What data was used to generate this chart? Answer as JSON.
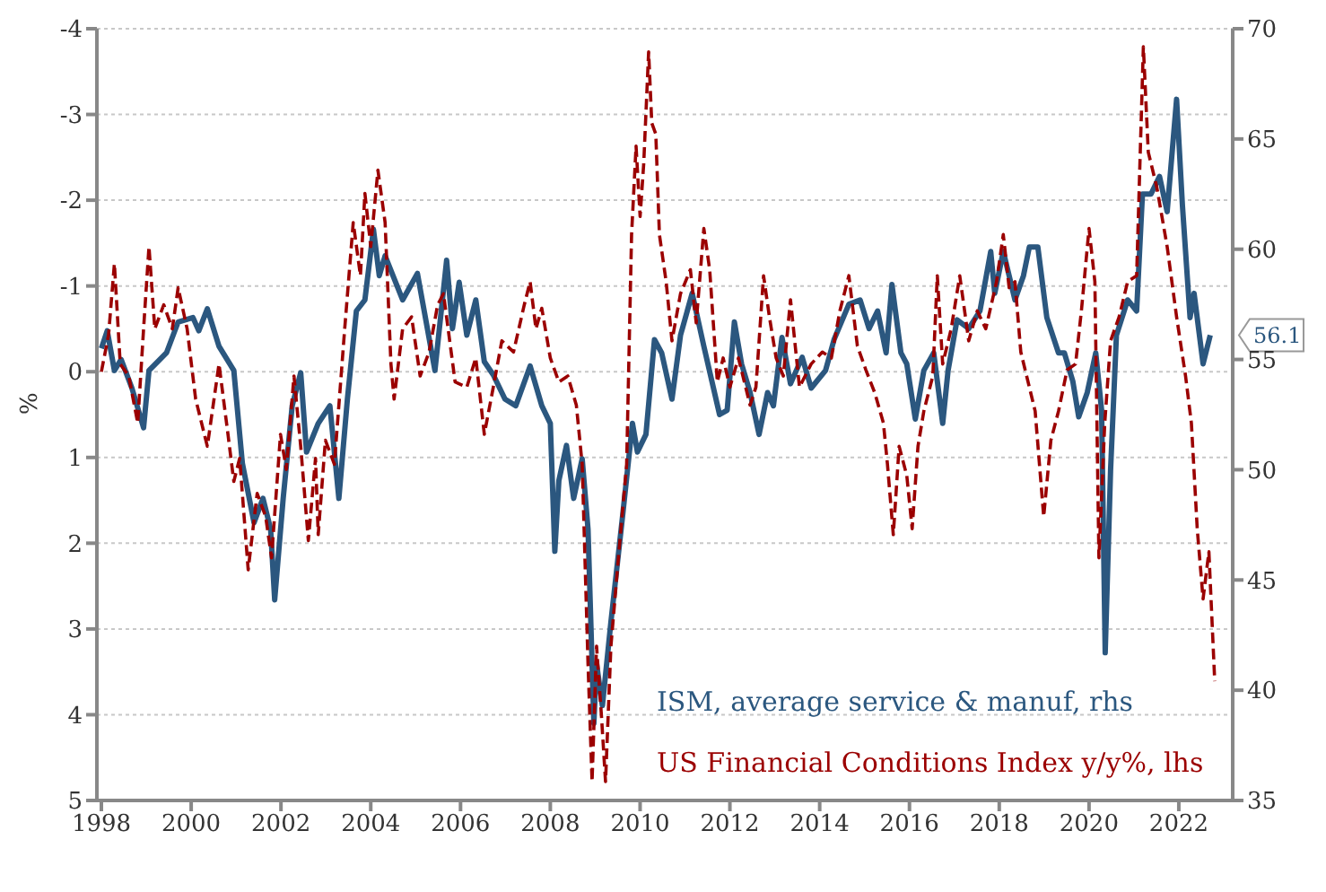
{
  "chart_data": {
    "type": "line",
    "ylabel": "%",
    "xlim": [
      1997.9,
      2023.2
    ],
    "xticks": [
      1998,
      2000,
      2002,
      2004,
      2006,
      2008,
      2010,
      2012,
      2014,
      2016,
      2018,
      2020,
      2022
    ],
    "ylim": [
      5,
      -4
    ],
    "yticks": [
      -4,
      -3,
      -2,
      -1,
      0,
      1,
      2,
      3,
      4,
      5
    ],
    "y2lim": [
      35,
      70
    ],
    "y2ticks": [
      35,
      40,
      45,
      50,
      55,
      60,
      65,
      70
    ],
    "grid": "y",
    "legend": "bottom",
    "marker": "none",
    "annotations": [
      "56.1"
    ],
    "series": [
      {
        "name": "ISM, average service & manuf, rhs",
        "color": "#2b577f",
        "axis": "y2",
        "line_style": "solid",
        "x": [
          1998.0,
          1998.13,
          1998.29,
          1998.44,
          1998.68,
          1998.94,
          1999.06,
          1999.45,
          1999.71,
          2000.04,
          2000.17,
          2000.36,
          2000.62,
          2000.95,
          2001.14,
          2001.4,
          2001.6,
          2001.77,
          2001.86,
          2002.05,
          2002.25,
          2002.44,
          2002.57,
          2002.83,
          2003.09,
          2003.29,
          2003.48,
          2003.68,
          2003.87,
          2004.06,
          2004.19,
          2004.32,
          2004.71,
          2005.04,
          2005.43,
          2005.69,
          2005.82,
          2005.97,
          2006.14,
          2006.34,
          2006.53,
          2006.73,
          2006.99,
          2007.23,
          2007.55,
          2007.81,
          2008.0,
          2008.1,
          2008.19,
          2008.36,
          2008.52,
          2008.71,
          2008.84,
          2008.97,
          2009.03,
          2009.16,
          2009.35,
          2009.61,
          2009.83,
          2009.94,
          2010.13,
          2010.32,
          2010.48,
          2010.71,
          2010.9,
          2011.16,
          2011.42,
          2011.77,
          2011.94,
          2012.1,
          2012.26,
          2012.45,
          2012.65,
          2012.84,
          2012.97,
          2013.16,
          2013.35,
          2013.61,
          2013.81,
          2014.13,
          2014.32,
          2014.65,
          2014.9,
          2015.1,
          2015.29,
          2015.48,
          2015.61,
          2015.81,
          2015.94,
          2016.13,
          2016.32,
          2016.54,
          2016.74,
          2016.86,
          2017.06,
          2017.32,
          2017.57,
          2017.81,
          2017.9,
          2018.09,
          2018.35,
          2018.54,
          2018.67,
          2018.86,
          2019.06,
          2019.32,
          2019.45,
          2019.64,
          2019.77,
          2019.96,
          2020.15,
          2020.28,
          2020.36,
          2020.48,
          2020.61,
          2020.86,
          2021.06,
          2021.19,
          2021.38,
          2021.57,
          2021.74,
          2021.95,
          2022.08,
          2022.25,
          2022.34,
          2022.54,
          2022.7
        ],
        "values": [
          55.5,
          56.3,
          54.5,
          55.0,
          53.7,
          51.9,
          54.5,
          55.3,
          56.7,
          56.9,
          56.3,
          57.3,
          55.6,
          54.5,
          50.3,
          47.6,
          48.7,
          47.3,
          44.1,
          48.7,
          52.9,
          54.4,
          50.8,
          52.1,
          52.9,
          48.7,
          53.2,
          57.2,
          57.7,
          60.9,
          58.8,
          59.7,
          57.7,
          58.9,
          54.5,
          59.5,
          56.4,
          58.5,
          56.1,
          57.7,
          54.9,
          54.3,
          53.2,
          52.9,
          54.7,
          52.9,
          52.1,
          46.3,
          49.5,
          51.1,
          48.7,
          50.5,
          47.3,
          38.5,
          41.2,
          39.3,
          43.1,
          47.9,
          52.1,
          50.8,
          51.6,
          55.9,
          55.3,
          53.2,
          56.1,
          58.0,
          55.6,
          52.5,
          52.7,
          56.7,
          54.8,
          53.5,
          51.6,
          53.5,
          52.9,
          56.0,
          53.9,
          55.1,
          53.7,
          54.5,
          55.9,
          57.5,
          57.7,
          56.4,
          57.2,
          55.3,
          58.4,
          55.3,
          54.8,
          52.3,
          54.5,
          55.3,
          52.1,
          54.5,
          56.8,
          56.4,
          57.2,
          59.9,
          58.0,
          59.9,
          57.7,
          58.8,
          60.1,
          60.1,
          56.9,
          55.3,
          55.3,
          54.0,
          52.4,
          53.5,
          55.3,
          52.7,
          41.7,
          50.0,
          56.1,
          57.7,
          57.2,
          62.5,
          62.5,
          63.3,
          61.7,
          66.8,
          62.0,
          56.9,
          58.0,
          54.8,
          56.1
        ]
      },
      {
        "name": "US Financial Conditions Index y/y%, lhs",
        "color": "#9b0000",
        "line_style": "dashed",
        "x": [
          1998.0,
          1998.16,
          1998.29,
          1998.42,
          1998.61,
          1998.81,
          1998.94,
          1999.06,
          1999.19,
          1999.39,
          1999.58,
          1999.71,
          1999.91,
          2000.1,
          2000.36,
          2000.62,
          2000.82,
          2000.95,
          2001.08,
          2001.27,
          2001.47,
          2001.66,
          2001.79,
          2001.99,
          2002.12,
          2002.29,
          2002.44,
          2002.61,
          2002.77,
          2002.83,
          2002.99,
          2003.19,
          2003.42,
          2003.61,
          2003.77,
          2003.87,
          2004.0,
          2004.16,
          2004.32,
          2004.45,
          2004.52,
          2004.71,
          2004.91,
          2005.1,
          2005.3,
          2005.49,
          2005.62,
          2005.88,
          2006.14,
          2006.34,
          2006.53,
          2006.73,
          2006.92,
          2007.18,
          2007.42,
          2007.55,
          2007.68,
          2007.81,
          2008.0,
          2008.19,
          2008.39,
          2008.58,
          2008.71,
          2008.84,
          2008.93,
          2009.03,
          2009.14,
          2009.23,
          2009.35,
          2009.55,
          2009.7,
          2009.81,
          2009.91,
          2010.0,
          2010.08,
          2010.19,
          2010.26,
          2010.35,
          2010.43,
          2010.58,
          2010.71,
          2010.9,
          2011.12,
          2011.25,
          2011.42,
          2011.55,
          2011.72,
          2011.85,
          2012.0,
          2012.19,
          2012.45,
          2012.58,
          2012.75,
          2012.88,
          2013.03,
          2013.19,
          2013.35,
          2013.55,
          2013.81,
          2014.06,
          2014.26,
          2014.45,
          2014.65,
          2014.84,
          2015.03,
          2015.23,
          2015.42,
          2015.51,
          2015.64,
          2015.77,
          2015.94,
          2016.06,
          2016.19,
          2016.32,
          2016.52,
          2016.62,
          2016.74,
          2016.93,
          2017.12,
          2017.32,
          2017.51,
          2017.7,
          2017.94,
          2018.09,
          2018.22,
          2018.35,
          2018.48,
          2018.61,
          2018.8,
          2018.99,
          2019.15,
          2019.32,
          2019.51,
          2019.7,
          2019.83,
          2020.0,
          2020.13,
          2020.22,
          2020.35,
          2020.48,
          2020.67,
          2020.86,
          2021.06,
          2021.21,
          2021.32,
          2021.51,
          2021.74,
          2021.95,
          2022.15,
          2022.28,
          2022.41,
          2022.54,
          2022.67,
          2022.8
        ],
        "values": [
          0.0,
          -0.43,
          -1.26,
          -0.09,
          0.05,
          0.6,
          -0.5,
          -1.46,
          -0.5,
          -0.78,
          -0.5,
          -0.98,
          -0.5,
          0.32,
          0.87,
          -0.09,
          0.73,
          1.28,
          1.01,
          2.31,
          1.42,
          1.69,
          2.17,
          0.73,
          1.14,
          0.05,
          0.87,
          1.97,
          1.01,
          1.9,
          0.8,
          1.08,
          -0.5,
          -1.74,
          -1.12,
          -2.08,
          -1.46,
          -2.35,
          -1.74,
          -0.09,
          0.32,
          -0.5,
          -0.64,
          0.05,
          -0.23,
          -0.78,
          -0.91,
          0.12,
          0.18,
          -0.16,
          0.73,
          0.18,
          -0.36,
          -0.23,
          -0.78,
          -1.05,
          -0.5,
          -0.74,
          -0.16,
          0.12,
          0.05,
          0.39,
          1.08,
          3.41,
          4.78,
          3.2,
          4.02,
          4.78,
          3.2,
          1.97,
          1.08,
          -1.6,
          -2.63,
          -1.81,
          -2.42,
          -3.73,
          -2.9,
          -2.77,
          -1.6,
          -1.05,
          -0.36,
          -0.91,
          -1.19,
          -0.57,
          -1.67,
          -1.19,
          0.12,
          -0.16,
          0.18,
          -0.16,
          0.39,
          0.18,
          -1.12,
          -0.64,
          -0.16,
          0.05,
          -0.84,
          0.18,
          -0.09,
          -0.23,
          -0.16,
          -0.71,
          -1.12,
          -0.3,
          -0.02,
          0.25,
          0.6,
          1.08,
          1.9,
          0.87,
          1.21,
          1.83,
          0.87,
          0.46,
          0.05,
          -1.12,
          -0.09,
          -0.5,
          -1.12,
          -0.36,
          -0.71,
          -0.5,
          -1.05,
          -1.6,
          -0.98,
          -1.05,
          -0.23,
          0.05,
          0.46,
          1.69,
          0.8,
          0.46,
          -0.02,
          -0.09,
          -0.71,
          -1.67,
          -1.05,
          2.17,
          0.6,
          -0.36,
          -0.64,
          -1.05,
          -1.12,
          -3.79,
          -2.56,
          -2.15,
          -1.46,
          -0.64,
          0.05,
          0.6,
          1.83,
          2.65,
          2.1,
          3.61
        ]
      }
    ]
  }
}
